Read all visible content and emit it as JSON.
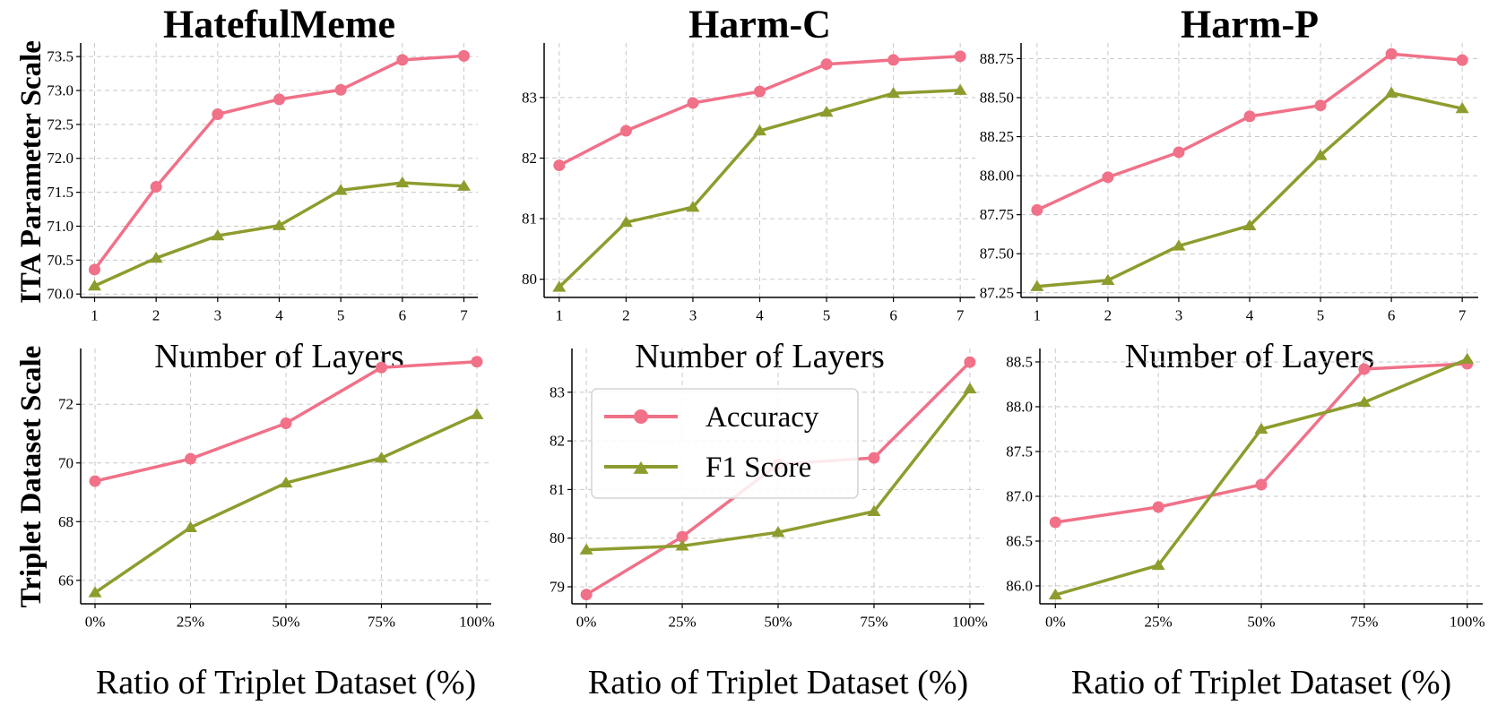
{
  "colors": {
    "accuracy": "#f07188",
    "f1": "#8e9c2e"
  },
  "row_labels": [
    "ITA Parameter Scale",
    "Triplet Dataset Scale"
  ],
  "legend": {
    "location": "upper-left of bottom-middle panel",
    "entries": [
      {
        "label": "Accuracy",
        "marker": "circle",
        "color": "#f07188"
      },
      {
        "label": "F1 Score",
        "marker": "triangle",
        "color": "#8e9c2e"
      }
    ]
  },
  "chart_data": [
    {
      "type": "line",
      "title": "HatefulMeme",
      "xlabel": "Number of Layers",
      "x": [
        "1",
        "2",
        "3",
        "4",
        "5",
        "6",
        "7"
      ],
      "ylim": [
        69.95,
        73.7
      ],
      "yticks": [
        70.0,
        70.5,
        71.0,
        71.5,
        72.0,
        72.5,
        73.0,
        73.5
      ],
      "ytick_labels": [
        "70.0",
        "70.5",
        "71.0",
        "71.5",
        "72.0",
        "72.5",
        "73.0",
        "73.5"
      ],
      "grid": true,
      "series": [
        {
          "name": "Accuracy",
          "marker": "circle",
          "values": [
            70.36,
            71.58,
            72.65,
            72.87,
            73.01,
            73.45,
            73.51
          ]
        },
        {
          "name": "F1 Score",
          "marker": "triangle",
          "values": [
            70.12,
            70.53,
            70.86,
            71.01,
            71.53,
            71.64,
            71.59
          ]
        }
      ]
    },
    {
      "type": "line",
      "title": "Harm-C",
      "xlabel": "Number of Layers",
      "x": [
        "1",
        "2",
        "3",
        "4",
        "5",
        "6",
        "7"
      ],
      "ylim": [
        79.7,
        83.9
      ],
      "yticks": [
        80,
        81,
        82,
        83
      ],
      "ytick_labels": [
        "80",
        "81",
        "82",
        "83"
      ],
      "grid": true,
      "series": [
        {
          "name": "Accuracy",
          "marker": "circle",
          "values": [
            81.88,
            82.45,
            82.91,
            83.1,
            83.55,
            83.62,
            83.68
          ]
        },
        {
          "name": "F1 Score",
          "marker": "triangle",
          "values": [
            79.87,
            80.94,
            81.19,
            82.45,
            82.76,
            83.07,
            83.12
          ]
        }
      ]
    },
    {
      "type": "line",
      "title": "Harm-P",
      "xlabel": "Number of Layers",
      "x": [
        "1",
        "2",
        "3",
        "4",
        "5",
        "6",
        "7"
      ],
      "ylim": [
        87.22,
        88.85
      ],
      "yticks": [
        87.25,
        87.5,
        87.75,
        88.0,
        88.25,
        88.5,
        88.75
      ],
      "ytick_labels": [
        "87.25",
        "87.50",
        "87.75",
        "88.00",
        "88.25",
        "88.50",
        "88.75"
      ],
      "grid": true,
      "series": [
        {
          "name": "Accuracy",
          "marker": "circle",
          "values": [
            87.78,
            87.99,
            88.15,
            88.38,
            88.45,
            88.78,
            88.74
          ]
        },
        {
          "name": "F1 Score",
          "marker": "triangle",
          "values": [
            87.29,
            87.33,
            87.55,
            87.68,
            88.13,
            88.53,
            88.43
          ]
        }
      ]
    },
    {
      "type": "line",
      "title": "",
      "xlabel": "Ratio of Triplet Dataset (%)",
      "x": [
        "0%",
        "25%",
        "50%",
        "75%",
        "100%"
      ],
      "ylim": [
        65.2,
        73.9
      ],
      "yticks": [
        66,
        68,
        70,
        72
      ],
      "ytick_labels": [
        "66",
        "68",
        "70",
        "72"
      ],
      "grid": true,
      "series": [
        {
          "name": "Accuracy",
          "marker": "circle",
          "values": [
            69.38,
            70.14,
            71.35,
            73.25,
            73.45
          ]
        },
        {
          "name": "F1 Score",
          "marker": "triangle",
          "values": [
            65.58,
            67.8,
            69.32,
            70.17,
            71.65
          ]
        }
      ]
    },
    {
      "type": "line",
      "title": "",
      "xlabel": "Ratio of Triplet Dataset (%)",
      "x": [
        "0%",
        "25%",
        "50%",
        "75%",
        "100%"
      ],
      "ylim": [
        78.65,
        83.9
      ],
      "yticks": [
        79,
        80,
        81,
        82,
        83
      ],
      "ytick_labels": [
        "79",
        "80",
        "81",
        "82",
        "83"
      ],
      "grid": true,
      "series": [
        {
          "name": "Accuracy",
          "marker": "circle",
          "values": [
            78.84,
            80.03,
            81.52,
            81.65,
            83.62
          ]
        },
        {
          "name": "F1 Score",
          "marker": "triangle",
          "values": [
            79.76,
            79.84,
            80.12,
            80.55,
            83.07
          ]
        }
      ]
    },
    {
      "type": "line",
      "title": "",
      "xlabel": "Ratio of Triplet Dataset (%)",
      "x": [
        "0%",
        "25%",
        "50%",
        "75%",
        "100%"
      ],
      "ylim": [
        85.8,
        88.65
      ],
      "yticks": [
        86.0,
        86.5,
        87.0,
        87.5,
        88.0,
        88.5
      ],
      "ytick_labels": [
        "86.0",
        "86.5",
        "87.0",
        "87.5",
        "88.0",
        "88.5"
      ],
      "grid": true,
      "series": [
        {
          "name": "Accuracy",
          "marker": "circle",
          "values": [
            86.71,
            86.88,
            87.13,
            88.42,
            88.48
          ]
        },
        {
          "name": "F1 Score",
          "marker": "triangle",
          "values": [
            85.9,
            86.23,
            87.75,
            88.05,
            88.53
          ]
        }
      ]
    }
  ]
}
